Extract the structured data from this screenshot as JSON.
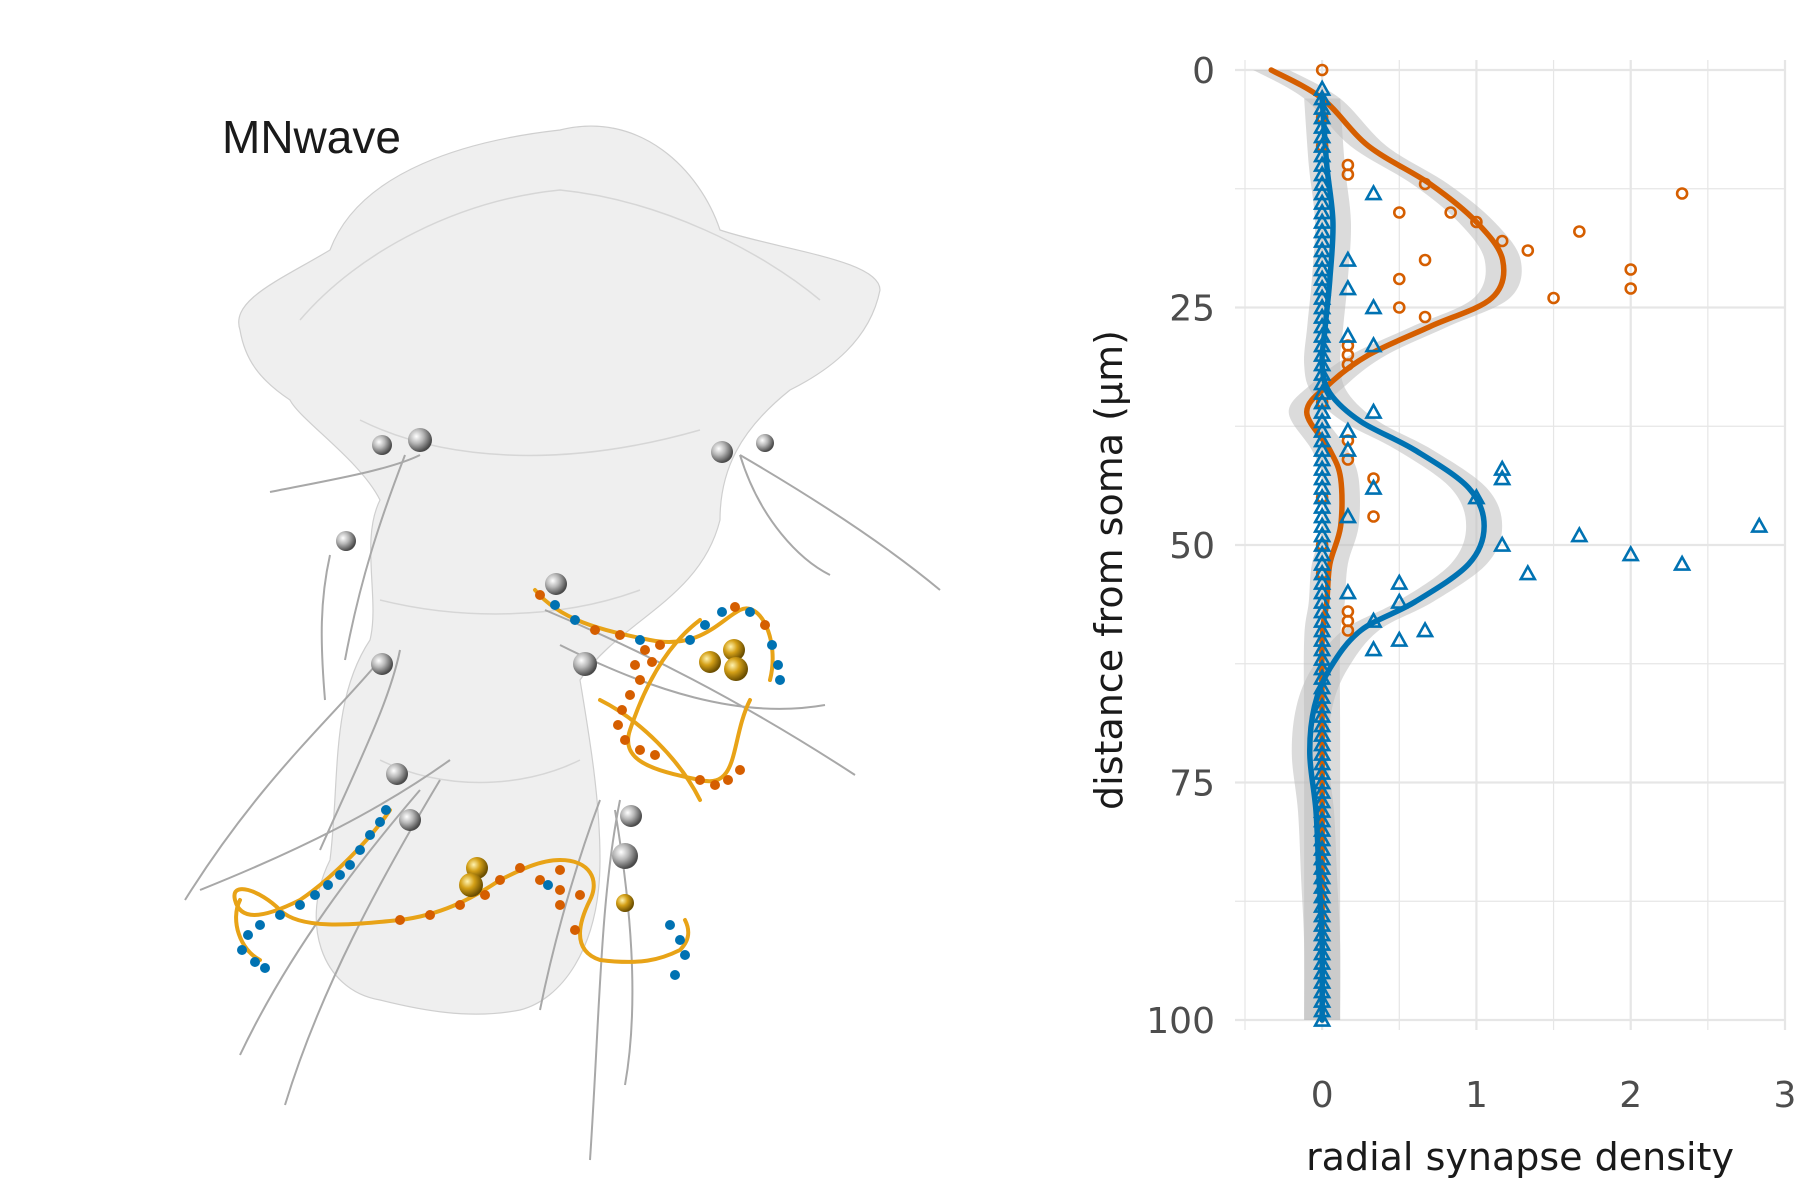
{
  "left_panel": {
    "label": "MNwave"
  },
  "colors": {
    "presynaptic": "#D55E00",
    "postsynaptic": "#0072B2",
    "arbor": "#E8A317",
    "soma_spheres": "#9a9a9a",
    "gold_spheres": "#B8860B",
    "band": "#BDBDBD",
    "grid": "#E6E6E6",
    "mesh": "#e9e9e9"
  },
  "chart_data": {
    "type": "scatter",
    "xlabel": "radial synapse density",
    "ylabel": "distance from soma (µm)",
    "xlim": [
      -0.5,
      3
    ],
    "ylim": [
      100,
      0
    ],
    "x_ticks": [
      0,
      1,
      2,
      3
    ],
    "y_ticks": [
      0,
      25,
      50,
      75,
      100
    ],
    "y_inverted": true,
    "grid": true,
    "legend": "none",
    "series": [
      {
        "marker": "circle",
        "color": "#D55E00",
        "points": [
          [
            0,
            0
          ],
          [
            0.167,
            10
          ],
          [
            0.167,
            11
          ],
          [
            0.667,
            12
          ],
          [
            0.5,
            15
          ],
          [
            0.833,
            15
          ],
          [
            2.333,
            13
          ],
          [
            1,
            16
          ],
          [
            1.167,
            18
          ],
          [
            1.333,
            19
          ],
          [
            1.667,
            17
          ],
          [
            0.667,
            20
          ],
          [
            0.5,
            22
          ],
          [
            2,
            21
          ],
          [
            2,
            23
          ],
          [
            1.5,
            24
          ],
          [
            0.5,
            25
          ],
          [
            0.667,
            26
          ],
          [
            0.167,
            29
          ],
          [
            0.167,
            39
          ],
          [
            0.167,
            41
          ],
          [
            0.333,
            43
          ],
          [
            0.333,
            47
          ],
          [
            0.167,
            57
          ],
          [
            0.167,
            58
          ],
          [
            0.167,
            59
          ],
          [
            0.167,
            30
          ],
          [
            0.167,
            31
          ]
        ],
        "trend": [
          [
            -0.33,
            0
          ],
          [
            0,
            3
          ],
          [
            0.3,
            8
          ],
          [
            0.7,
            12
          ],
          [
            1,
            16
          ],
          [
            1.17,
            20
          ],
          [
            1.1,
            24
          ],
          [
            0.7,
            27
          ],
          [
            0.3,
            30
          ],
          [
            0.05,
            33
          ],
          [
            -0.1,
            36
          ],
          [
            0.05,
            40
          ],
          [
            0.12,
            43
          ],
          [
            0.12,
            48
          ],
          [
            0.05,
            52
          ],
          [
            0.03,
            56
          ],
          [
            0,
            60
          ],
          [
            0,
            70
          ],
          [
            0,
            80
          ],
          [
            0,
            90
          ],
          [
            0,
            100
          ]
        ]
      },
      {
        "marker": "triangle",
        "color": "#0072B2",
        "points": [
          [
            0.333,
            13
          ],
          [
            0.167,
            20
          ],
          [
            0.167,
            23
          ],
          [
            0.333,
            25
          ],
          [
            0.167,
            28
          ],
          [
            0.333,
            29
          ],
          [
            0.333,
            36
          ],
          [
            0.167,
            38
          ],
          [
            0.167,
            40
          ],
          [
            1.167,
            42
          ],
          [
            1.167,
            43
          ],
          [
            0.333,
            44
          ],
          [
            1,
            45
          ],
          [
            0.167,
            47
          ],
          [
            1.667,
            49
          ],
          [
            2,
            51
          ],
          [
            2.333,
            52
          ],
          [
            1.167,
            50
          ],
          [
            1.333,
            53
          ],
          [
            2.833,
            48
          ],
          [
            0.5,
            54
          ],
          [
            0.167,
            55
          ],
          [
            0.5,
            56
          ],
          [
            0.333,
            58
          ],
          [
            0.667,
            59
          ],
          [
            0.5,
            60
          ],
          [
            0.333,
            61
          ]
        ],
        "trend": [
          [
            0,
            3
          ],
          [
            0.03,
            10
          ],
          [
            0.07,
            16
          ],
          [
            0.05,
            22
          ],
          [
            0.02,
            27
          ],
          [
            0,
            31
          ],
          [
            0.05,
            34
          ],
          [
            0.25,
            37
          ],
          [
            0.6,
            40
          ],
          [
            0.95,
            44
          ],
          [
            1.05,
            48
          ],
          [
            0.95,
            52
          ],
          [
            0.6,
            56
          ],
          [
            0.25,
            59
          ],
          [
            0.05,
            63
          ],
          [
            -0.05,
            67
          ],
          [
            -0.08,
            72
          ],
          [
            -0.04,
            78
          ],
          [
            -0.02,
            85
          ],
          [
            0,
            92
          ],
          [
            0,
            100
          ]
        ]
      }
    ]
  }
}
